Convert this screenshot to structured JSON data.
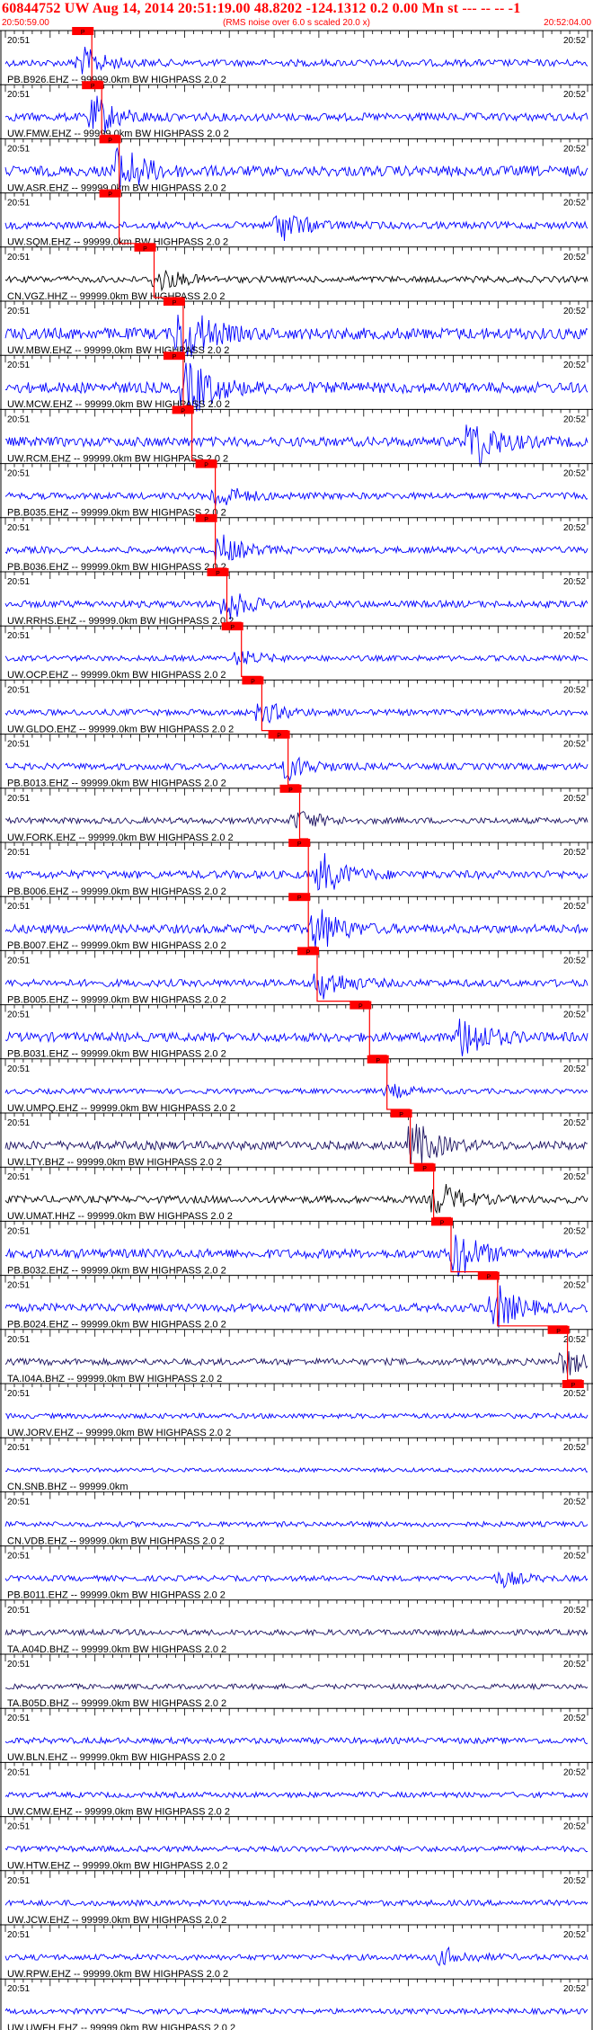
{
  "header": {
    "title": "60844752 UW Aug 14, 2014 20:51:19.00   48.8202 -124.1312  0.2 0.00 Mn st --- -- --  -1",
    "start_time": "20:50:59.00",
    "rms_note": "(RMS noise over 6.0 s scaled 20.0 x)",
    "end_time": "20:52:04.00"
  },
  "colors": {
    "title": "#ff0000",
    "trace": "#0000ff",
    "trace_dark": "#1a1060",
    "trace_black": "#000000",
    "pick_box": "#ff0000",
    "pick_line": "#ff0000",
    "separator": "#000000"
  },
  "time_labels": {
    "left": "20:51",
    "right": "20:52"
  },
  "pick_label": "P",
  "stations": [
    {
      "label": "PB.B926.EHZ -- 99999.0km BW  HIGHPASS  2.0  2",
      "color": "trace",
      "pick": 0.133,
      "burst": 0.13,
      "amp": 1.0
    },
    {
      "label": "UW.FMW.EHZ -- 99999.0km BW  HIGHPASS  2.0  2",
      "color": "trace",
      "pick": 0.15,
      "burst": 0.15,
      "amp": 1.4
    },
    {
      "label": "UW.ASR.EHZ -- 99999.0km BW  HIGHPASS  2.0  2",
      "color": "trace",
      "pick": 0.18,
      "burst": 0.19,
      "amp": 2.2
    },
    {
      "label": "UW.SQM.EHZ -- 99999.0km BW  HIGHPASS  2.0  2",
      "color": "trace",
      "pick": 0.18,
      "burst": 0.47,
      "amp": 1.1
    },
    {
      "label": "CN.VGZ.HHZ -- 99999.0km BW  HIGHPASS  2.0  2",
      "color": "trace_black",
      "pick": 0.24,
      "burst": 0.26,
      "amp": 0.8
    },
    {
      "label": "UW.MBW.EHZ -- 99999.0km BW  HIGHPASS  2.0  2",
      "color": "trace",
      "pick": 0.29,
      "burst": 0.3,
      "amp": 2.6
    },
    {
      "label": "UW.MCW.EHZ -- 99999.0km BW  HIGHPASS  2.0  2",
      "color": "trace",
      "pick": 0.29,
      "burst": 0.31,
      "amp": 2.4
    },
    {
      "label": "UW.RCM.EHZ -- 99999.0km BW  HIGHPASS  2.0  2",
      "color": "trace",
      "pick": 0.305,
      "burst": 0.8,
      "amp": 1.9
    },
    {
      "label": "PB.B035.EHZ -- 99999.0km BW  HIGHPASS  2.0  2",
      "color": "trace",
      "pick": 0.345,
      "burst": 0.36,
      "amp": 0.9
    },
    {
      "label": "PB.B036.EHZ -- 99999.0km BW  HIGHPASS  2.0  2",
      "color": "trace",
      "pick": 0.345,
      "burst": 0.37,
      "amp": 0.9
    },
    {
      "label": "UW.RRHS.EHZ -- 99999.0km BW  HIGHPASS  2.0  2",
      "color": "trace",
      "pick": 0.365,
      "burst": 0.38,
      "amp": 1.0
    },
    {
      "label": "UW.OCP.EHZ -- 99999.0km BW  HIGHPASS  2.0  2",
      "color": "trace",
      "pick": 0.39,
      "burst": 0.4,
      "amp": 0.5
    },
    {
      "label": "UW.GLDO.EHZ -- 99999.0km BW  HIGHPASS  2.0  2",
      "color": "trace",
      "pick": 0.425,
      "burst": 0.44,
      "amp": 0.7
    },
    {
      "label": "PB.B013.EHZ -- 99999.0km BW  HIGHPASS  2.0  2",
      "color": "trace",
      "pick": 0.47,
      "burst": 0.48,
      "amp": 0.9
    },
    {
      "label": "UW.FORK.EHZ -- 99999.0km BW  HIGHPASS  2.0  2",
      "color": "trace_dark",
      "pick": 0.49,
      "burst": 0.5,
      "amp": 0.7
    },
    {
      "label": "PB.B006.EHZ -- 99999.0km BW  HIGHPASS  2.0  2",
      "color": "trace",
      "pick": 0.505,
      "burst": 0.54,
      "amp": 1.4
    },
    {
      "label": "PB.B007.EHZ -- 99999.0km BW  HIGHPASS  2.0  2",
      "color": "trace",
      "pick": 0.505,
      "burst": 0.53,
      "amp": 1.7
    },
    {
      "label": "PB.B005.EHZ -- 99999.0km BW  HIGHPASS  2.0  2",
      "color": "trace",
      "pick": 0.52,
      "burst": 0.54,
      "amp": 1.1
    },
    {
      "label": "PB.B031.EHZ -- 99999.0km BW  HIGHPASS  2.0  2",
      "color": "trace",
      "pick": 0.61,
      "burst": 0.78,
      "amp": 1.8
    },
    {
      "label": "UW.UMPQ.EHZ -- 99999.0km BW  HIGHPASS  2.0  2",
      "color": "trace",
      "pick": 0.64,
      "burst": 0.66,
      "amp": 0.4
    },
    {
      "label": "UW.LTY.BHZ -- 99999.0km BW  HIGHPASS  2.0  2",
      "color": "trace_dark",
      "pick": 0.68,
      "burst": 0.7,
      "amp": 1.6
    },
    {
      "label": "UW.UMAT.HHZ -- 99999.0km BW  HIGHPASS  2.0  2",
      "color": "trace_black",
      "pick": 0.72,
      "burst": 0.74,
      "amp": 1.2
    },
    {
      "label": "PB.B032.EHZ -- 99999.0km BW  HIGHPASS  2.0  2",
      "color": "trace",
      "pick": 0.75,
      "burst": 0.77,
      "amp": 1.8
    },
    {
      "label": "PB.B024.EHZ -- 99999.0km BW  HIGHPASS  2.0  2",
      "color": "trace",
      "pick": 0.83,
      "burst": 0.84,
      "amp": 1.5
    },
    {
      "label": "TA.I04A.BHZ -- 99999.0km BW  HIGHPASS  2.0  2",
      "color": "trace_dark",
      "pick": 0.95,
      "burst": 0.96,
      "amp": 0.9
    },
    {
      "label": "UW.JORV.EHZ -- 99999.0km BW  HIGHPASS  2.0  2",
      "color": "trace",
      "pick": 0.975,
      "burst": null,
      "amp": 0.4
    },
    {
      "label": "CN.SNB.BHZ -- 99999.0km",
      "color": "trace",
      "pick": null,
      "burst": null,
      "amp": 0.0
    },
    {
      "label": "CN.VDB.EHZ -- 99999.0km BW  HIGHPASS  2.0  2",
      "color": "trace",
      "pick": null,
      "burst": null,
      "amp": 0.4
    },
    {
      "label": "PB.B011.EHZ -- 99999.0km BW  HIGHPASS  2.0  2",
      "color": "trace",
      "pick": null,
      "burst": 0.85,
      "amp": 0.5
    },
    {
      "label": "TA.A04D.BHZ -- 99999.0km BW  HIGHPASS  2.0  2",
      "color": "trace_dark",
      "pick": null,
      "burst": null,
      "amp": 0.6
    },
    {
      "label": "TA.B05D.BHZ -- 99999.0km BW  HIGHPASS  2.0  2",
      "color": "trace_dark",
      "pick": null,
      "burst": null,
      "amp": 0.4
    },
    {
      "label": "UW.BLN.EHZ -- 99999.0km BW  HIGHPASS  2.0  2",
      "color": "trace",
      "pick": null,
      "burst": null,
      "amp": 0.7
    },
    {
      "label": "UW.CMW.EHZ -- 99999.0km BW  HIGHPASS  2.0  2",
      "color": "trace",
      "pick": null,
      "burst": null,
      "amp": 0.5
    },
    {
      "label": "UW.HTW.EHZ -- 99999.0km BW  HIGHPASS  2.0  2",
      "color": "trace",
      "pick": null,
      "burst": null,
      "amp": 0.6
    },
    {
      "label": "UW.JCW.EHZ -- 99999.0km BW  HIGHPASS  2.0  2",
      "color": "trace",
      "pick": null,
      "burst": null,
      "amp": 0.6
    },
    {
      "label": "UW.RPW.EHZ -- 99999.0km BW  HIGHPASS  2.0  2",
      "color": "trace",
      "pick": null,
      "burst": 0.75,
      "amp": 0.6
    },
    {
      "label": "UW.UWFH.EHZ -- 99999.0km BW  HIGHPASS  2.0  2",
      "color": "trace",
      "pick": null,
      "burst": null,
      "amp": 0.5
    }
  ]
}
